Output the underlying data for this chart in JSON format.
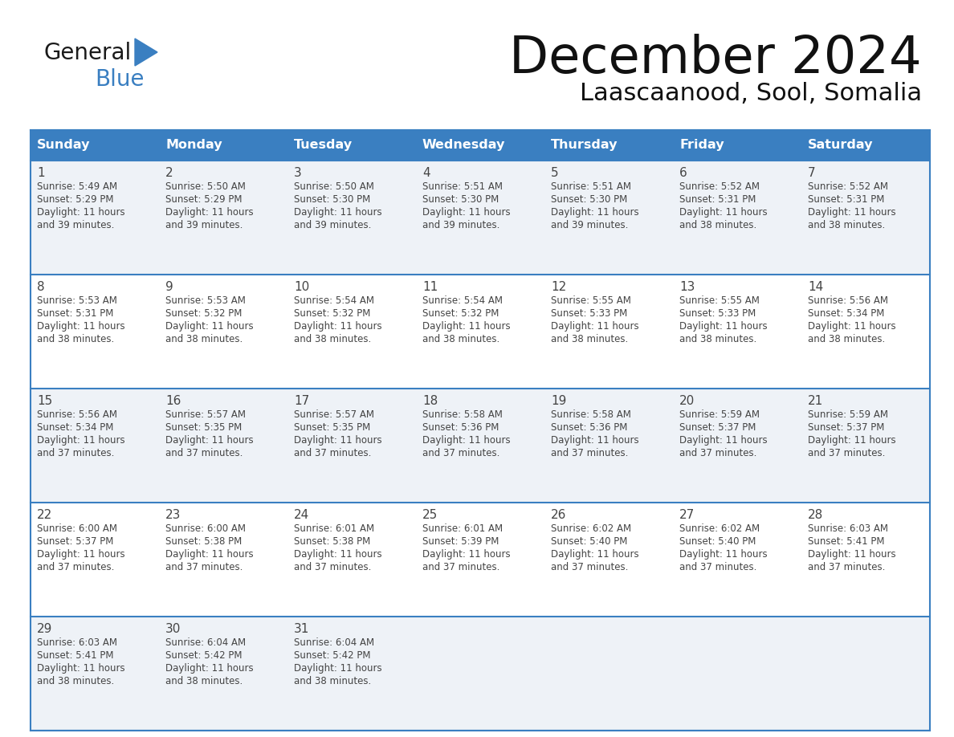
{
  "title": "December 2024",
  "subtitle": "Laascaanood, Sool, Somalia",
  "header_bg_color": "#3a7fc1",
  "header_text_color": "#ffffff",
  "cell_bg_light": "#eef2f7",
  "cell_bg_white": "#ffffff",
  "border_color": "#3a7fc1",
  "text_color": "#444444",
  "days_of_week": [
    "Sunday",
    "Monday",
    "Tuesday",
    "Wednesday",
    "Thursday",
    "Friday",
    "Saturday"
  ],
  "calendar_data": [
    [
      {
        "day": 1,
        "sunrise": "5:49 AM",
        "sunset": "5:29 PM",
        "daylight_hours": 11,
        "daylight_minutes": 39
      },
      {
        "day": 2,
        "sunrise": "5:50 AM",
        "sunset": "5:29 PM",
        "daylight_hours": 11,
        "daylight_minutes": 39
      },
      {
        "day": 3,
        "sunrise": "5:50 AM",
        "sunset": "5:30 PM",
        "daylight_hours": 11,
        "daylight_minutes": 39
      },
      {
        "day": 4,
        "sunrise": "5:51 AM",
        "sunset": "5:30 PM",
        "daylight_hours": 11,
        "daylight_minutes": 39
      },
      {
        "day": 5,
        "sunrise": "5:51 AM",
        "sunset": "5:30 PM",
        "daylight_hours": 11,
        "daylight_minutes": 39
      },
      {
        "day": 6,
        "sunrise": "5:52 AM",
        "sunset": "5:31 PM",
        "daylight_hours": 11,
        "daylight_minutes": 38
      },
      {
        "day": 7,
        "sunrise": "5:52 AM",
        "sunset": "5:31 PM",
        "daylight_hours": 11,
        "daylight_minutes": 38
      }
    ],
    [
      {
        "day": 8,
        "sunrise": "5:53 AM",
        "sunset": "5:31 PM",
        "daylight_hours": 11,
        "daylight_minutes": 38
      },
      {
        "day": 9,
        "sunrise": "5:53 AM",
        "sunset": "5:32 PM",
        "daylight_hours": 11,
        "daylight_minutes": 38
      },
      {
        "day": 10,
        "sunrise": "5:54 AM",
        "sunset": "5:32 PM",
        "daylight_hours": 11,
        "daylight_minutes": 38
      },
      {
        "day": 11,
        "sunrise": "5:54 AM",
        "sunset": "5:32 PM",
        "daylight_hours": 11,
        "daylight_minutes": 38
      },
      {
        "day": 12,
        "sunrise": "5:55 AM",
        "sunset": "5:33 PM",
        "daylight_hours": 11,
        "daylight_minutes": 38
      },
      {
        "day": 13,
        "sunrise": "5:55 AM",
        "sunset": "5:33 PM",
        "daylight_hours": 11,
        "daylight_minutes": 38
      },
      {
        "day": 14,
        "sunrise": "5:56 AM",
        "sunset": "5:34 PM",
        "daylight_hours": 11,
        "daylight_minutes": 38
      }
    ],
    [
      {
        "day": 15,
        "sunrise": "5:56 AM",
        "sunset": "5:34 PM",
        "daylight_hours": 11,
        "daylight_minutes": 37
      },
      {
        "day": 16,
        "sunrise": "5:57 AM",
        "sunset": "5:35 PM",
        "daylight_hours": 11,
        "daylight_minutes": 37
      },
      {
        "day": 17,
        "sunrise": "5:57 AM",
        "sunset": "5:35 PM",
        "daylight_hours": 11,
        "daylight_minutes": 37
      },
      {
        "day": 18,
        "sunrise": "5:58 AM",
        "sunset": "5:36 PM",
        "daylight_hours": 11,
        "daylight_minutes": 37
      },
      {
        "day": 19,
        "sunrise": "5:58 AM",
        "sunset": "5:36 PM",
        "daylight_hours": 11,
        "daylight_minutes": 37
      },
      {
        "day": 20,
        "sunrise": "5:59 AM",
        "sunset": "5:37 PM",
        "daylight_hours": 11,
        "daylight_minutes": 37
      },
      {
        "day": 21,
        "sunrise": "5:59 AM",
        "sunset": "5:37 PM",
        "daylight_hours": 11,
        "daylight_minutes": 37
      }
    ],
    [
      {
        "day": 22,
        "sunrise": "6:00 AM",
        "sunset": "5:37 PM",
        "daylight_hours": 11,
        "daylight_minutes": 37
      },
      {
        "day": 23,
        "sunrise": "6:00 AM",
        "sunset": "5:38 PM",
        "daylight_hours": 11,
        "daylight_minutes": 37
      },
      {
        "day": 24,
        "sunrise": "6:01 AM",
        "sunset": "5:38 PM",
        "daylight_hours": 11,
        "daylight_minutes": 37
      },
      {
        "day": 25,
        "sunrise": "6:01 AM",
        "sunset": "5:39 PM",
        "daylight_hours": 11,
        "daylight_minutes": 37
      },
      {
        "day": 26,
        "sunrise": "6:02 AM",
        "sunset": "5:40 PM",
        "daylight_hours": 11,
        "daylight_minutes": 37
      },
      {
        "day": 27,
        "sunrise": "6:02 AM",
        "sunset": "5:40 PM",
        "daylight_hours": 11,
        "daylight_minutes": 37
      },
      {
        "day": 28,
        "sunrise": "6:03 AM",
        "sunset": "5:41 PM",
        "daylight_hours": 11,
        "daylight_minutes": 37
      }
    ],
    [
      {
        "day": 29,
        "sunrise": "6:03 AM",
        "sunset": "5:41 PM",
        "daylight_hours": 11,
        "daylight_minutes": 38
      },
      {
        "day": 30,
        "sunrise": "6:04 AM",
        "sunset": "5:42 PM",
        "daylight_hours": 11,
        "daylight_minutes": 38
      },
      {
        "day": 31,
        "sunrise": "6:04 AM",
        "sunset": "5:42 PM",
        "daylight_hours": 11,
        "daylight_minutes": 38
      },
      null,
      null,
      null,
      null
    ]
  ],
  "logo_general_color": "#1a1a1a",
  "logo_blue_color": "#3a7fc1",
  "fig_bg_color": "#ffffff"
}
